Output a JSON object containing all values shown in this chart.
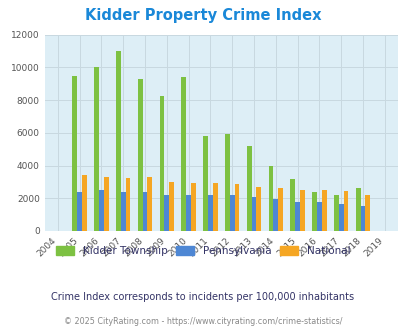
{
  "title": "Kidder Property Crime Index",
  "years": [
    2004,
    2005,
    2006,
    2007,
    2008,
    2009,
    2010,
    2011,
    2012,
    2013,
    2014,
    2015,
    2016,
    2017,
    2018,
    2019
  ],
  "kidder": [
    0,
    9450,
    10000,
    11000,
    9300,
    8250,
    9400,
    5800,
    5900,
    5200,
    4000,
    3200,
    2400,
    2200,
    2650,
    0
  ],
  "pennsylvania": [
    0,
    2400,
    2500,
    2400,
    2400,
    2200,
    2200,
    2200,
    2200,
    2100,
    1950,
    1800,
    1800,
    1650,
    1500,
    0
  ],
  "national": [
    0,
    3400,
    3300,
    3250,
    3300,
    3000,
    2950,
    2950,
    2900,
    2700,
    2650,
    2500,
    2500,
    2450,
    2200,
    0
  ],
  "kidder_color": "#7dc142",
  "pennsylvania_color": "#4e87d4",
  "national_color": "#f5a623",
  "background_color": "#ddeef6",
  "ylim": [
    0,
    12000
  ],
  "yticks": [
    0,
    2000,
    4000,
    6000,
    8000,
    10000,
    12000
  ],
  "subtitle": "Crime Index corresponds to incidents per 100,000 inhabitants",
  "footer": "© 2025 CityRating.com - https://www.cityrating.com/crime-statistics/",
  "title_color": "#1a88d8",
  "subtitle_color": "#333366",
  "footer_color": "#888888",
  "grid_color": "#c8d8e0",
  "legend_label_color": "#333366"
}
